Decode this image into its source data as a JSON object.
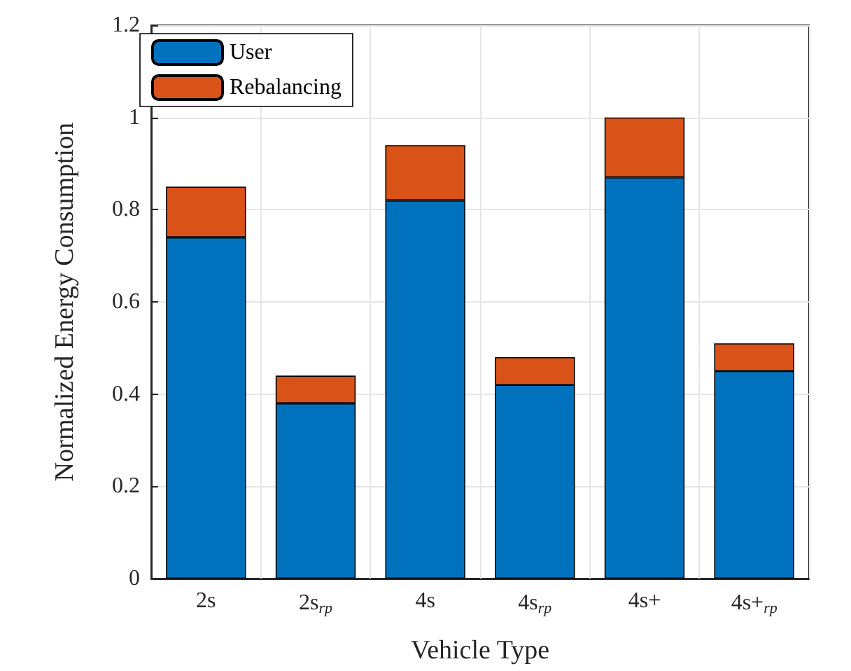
{
  "chart_data": {
    "type": "bar",
    "stacked": true,
    "xlabel": "Vehicle Type",
    "ylabel": "Normalized Energy Consumption",
    "categories": [
      "2s",
      "2s$_{rp}$",
      "4s",
      "4s$_{rp}$",
      "4s+",
      "4s+$_{rp}$"
    ],
    "series": [
      {
        "name": "User",
        "color": "#0072bd",
        "values": [
          0.74,
          0.38,
          0.82,
          0.42,
          0.87,
          0.45
        ]
      },
      {
        "name": "Rebalancing",
        "color": "#d95319",
        "values": [
          0.11,
          0.06,
          0.12,
          0.06,
          0.13,
          0.06
        ]
      }
    ],
    "ylim": [
      0,
      1.2
    ],
    "yticks": [
      0,
      0.2,
      0.4,
      0.6,
      0.8,
      1,
      1.2
    ],
    "grid": true,
    "legend": "top left"
  }
}
